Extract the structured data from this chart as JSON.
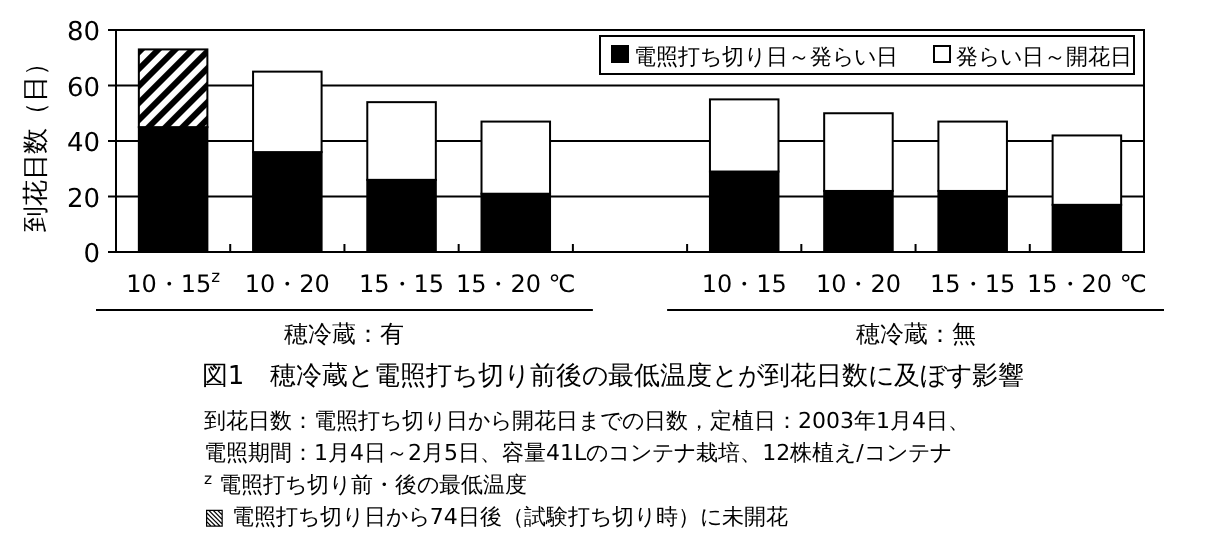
{
  "chart_data": {
    "type": "bar",
    "stacked": true,
    "title": "図1　穂冷蔵と電照打ち切り前後の最低温度とが到花日数に及ぼす影響",
    "ylabel": "到花日数（日）",
    "categories": [
      "10・15$^{z}$",
      "10・20",
      "15・15",
      "15・20 ℃",
      null,
      "10・15",
      "10・20",
      "15・15",
      "15・20 ℃"
    ],
    "series": [
      {
        "name": "電照打ち切り日～発らい日",
        "color": "#000000",
        "values": [
          45,
          36,
          26,
          21,
          null,
          29,
          22,
          22,
          17
        ]
      },
      {
        "name": "発らい日～開花日",
        "color": "#ffffff",
        "values": [
          null,
          29,
          28,
          26,
          null,
          26,
          28,
          25,
          25
        ]
      },
      {
        "color": "#000000",
        "values": [
          28,
          null,
          null,
          null,
          null,
          null,
          null,
          null,
          null
        ]
      }
    ],
    "ylim": [
      0,
      80
    ],
    "yticks": [
      0,
      20,
      40,
      60,
      80
    ],
    "grid": "y",
    "legend": "top right",
    "annotations": [
      "穂冷蔵：有",
      "穂冷蔵：無",
      "到花日数：電照打ち切り日から開花日までの日数，定植日：2003年1月4日、",
      "電照期間：1月4日～2月5日、容量41Lのコンテナ栽培、12株植え/コンテナ",
      "$^{z}$ 電照打ち切り前・後の最低温度",
      "▧ 電照打ち切り日から74日後（試験打ち切り時）に未開花"
    ]
  }
}
